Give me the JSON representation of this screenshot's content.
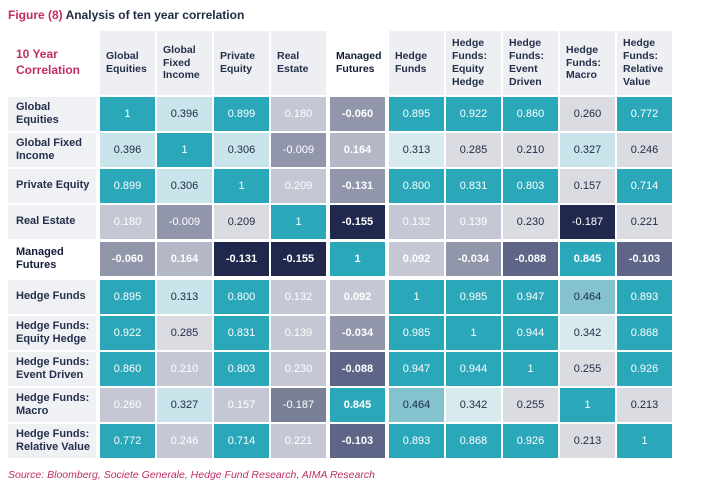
{
  "title": {
    "figure_label": "Figure (8)",
    "text": "Analysis of ten year correlation"
  },
  "source": "Source: Bloomberg, Societe Generale, Hedge Fund Research, AIMA Research",
  "palette": {
    "t": {
      "bg": "#2BA7BA",
      "fg": "#FFFFFF"
    },
    "mt": {
      "bg": "#84C3CE",
      "fg": "#1F2A44"
    },
    "lb": {
      "bg": "#C9E4EA",
      "fg": "#1F2A44"
    },
    "lb2": {
      "bg": "#D7EBEF",
      "fg": "#1F2A44"
    },
    "lgd": {
      "bg": "#DADCE2",
      "fg": "#1F2A44"
    },
    "lgw": {
      "bg": "#C5C8D4",
      "fg": "#FFFFFF"
    },
    "mg": {
      "bg": "#9196AB",
      "fg": "#FFFFFF"
    },
    "mg2": {
      "bg": "#B3B7C6",
      "fg": "#FFFFFF"
    },
    "mg3": {
      "bg": "#7B8099",
      "fg": "#FFFFFF"
    },
    "ds": {
      "bg": "#5F6587",
      "fg": "#FFFFFF"
    },
    "dn": {
      "bg": "#20294D",
      "fg": "#FFFFFF"
    }
  },
  "table": {
    "corner_label": "10 Year Correlation",
    "managed_futures_index": 4,
    "cell_styles": [
      [
        "t",
        "lb",
        "t",
        "lgw",
        "mg",
        "t",
        "t",
        "t",
        "lgd",
        "t"
      ],
      [
        "lb",
        "t",
        "lb",
        "mg",
        "mg2",
        "lb2",
        "lgd",
        "lgd",
        "lb",
        "lgd"
      ],
      [
        "t",
        "lb",
        "t",
        "lgw",
        "mg",
        "t",
        "t",
        "t",
        "lgd",
        "t"
      ],
      [
        "lgw",
        "mg",
        "lgd",
        "t",
        "dn",
        "lgw",
        "lgw",
        "lgd",
        "dn",
        "lgd"
      ],
      [
        "mg",
        "mg2",
        "dn",
        "dn",
        "t",
        "lgw",
        "mg",
        "ds",
        "t",
        "ds"
      ],
      [
        "t",
        "lb",
        "t",
        "lgw",
        "lgw",
        "t",
        "t",
        "t",
        "mt",
        "t"
      ],
      [
        "t",
        "lgd",
        "t",
        "lgw",
        "mg",
        "t",
        "t",
        "t",
        "lb2",
        "t"
      ],
      [
        "t",
        "lgw",
        "t",
        "lgw",
        "ds",
        "t",
        "t",
        "t",
        "lgd",
        "t"
      ],
      [
        "lgw",
        "lb",
        "lgw",
        "mg3",
        "t",
        "mt",
        "lb2",
        "lgd",
        "t",
        "lgd"
      ],
      [
        "t",
        "lgw",
        "t",
        "lgw",
        "ds",
        "t",
        "t",
        "t",
        "lgd",
        "t"
      ]
    ]
  },
  "chart_data": {
    "type": "heatmap",
    "title": "Figure (8) Analysis of ten year correlation",
    "categories": [
      "Global Equities",
      "Global Fixed Income",
      "Private Equity",
      "Real Estate",
      "Managed Futures",
      "Hedge Funds",
      "Hedge Funds: Equity Hedge",
      "Hedge Funds: Event Driven",
      "Hedge Funds: Macro",
      "Hedge Funds: Relative Value"
    ],
    "matrix": [
      [
        1,
        0.396,
        0.899,
        0.18,
        -0.06,
        0.895,
        0.922,
        0.86,
        0.26,
        0.772
      ],
      [
        0.396,
        1,
        0.306,
        -0.009,
        0.164,
        0.313,
        0.285,
        0.21,
        0.327,
        0.246
      ],
      [
        0.899,
        0.306,
        1,
        0.209,
        -0.131,
        0.8,
        0.831,
        0.803,
        0.157,
        0.714
      ],
      [
        0.18,
        -0.009,
        0.209,
        1,
        -0.155,
        0.132,
        0.139,
        0.23,
        -0.187,
        0.221
      ],
      [
        -0.06,
        0.164,
        -0.131,
        -0.155,
        1,
        0.092,
        -0.034,
        -0.088,
        0.845,
        -0.103
      ],
      [
        0.895,
        0.313,
        0.8,
        0.132,
        0.092,
        1,
        0.985,
        0.947,
        0.464,
        0.893
      ],
      [
        0.922,
        0.285,
        0.831,
        0.139,
        -0.034,
        0.985,
        1,
        0.944,
        0.342,
        0.868
      ],
      [
        0.86,
        0.21,
        0.803,
        0.23,
        -0.088,
        0.947,
        0.944,
        1,
        0.255,
        0.926
      ],
      [
        0.26,
        0.327,
        0.157,
        -0.187,
        0.845,
        0.464,
        0.342,
        0.255,
        1,
        0.213
      ],
      [
        0.772,
        0.246,
        0.714,
        0.221,
        -0.103,
        0.893,
        0.868,
        0.926,
        0.213,
        1
      ]
    ],
    "value_range": [
      -1,
      1
    ],
    "legend_position": "none",
    "source": "Source: Bloomberg, Societe Generale, Hedge Fund Research, AIMA Research"
  }
}
